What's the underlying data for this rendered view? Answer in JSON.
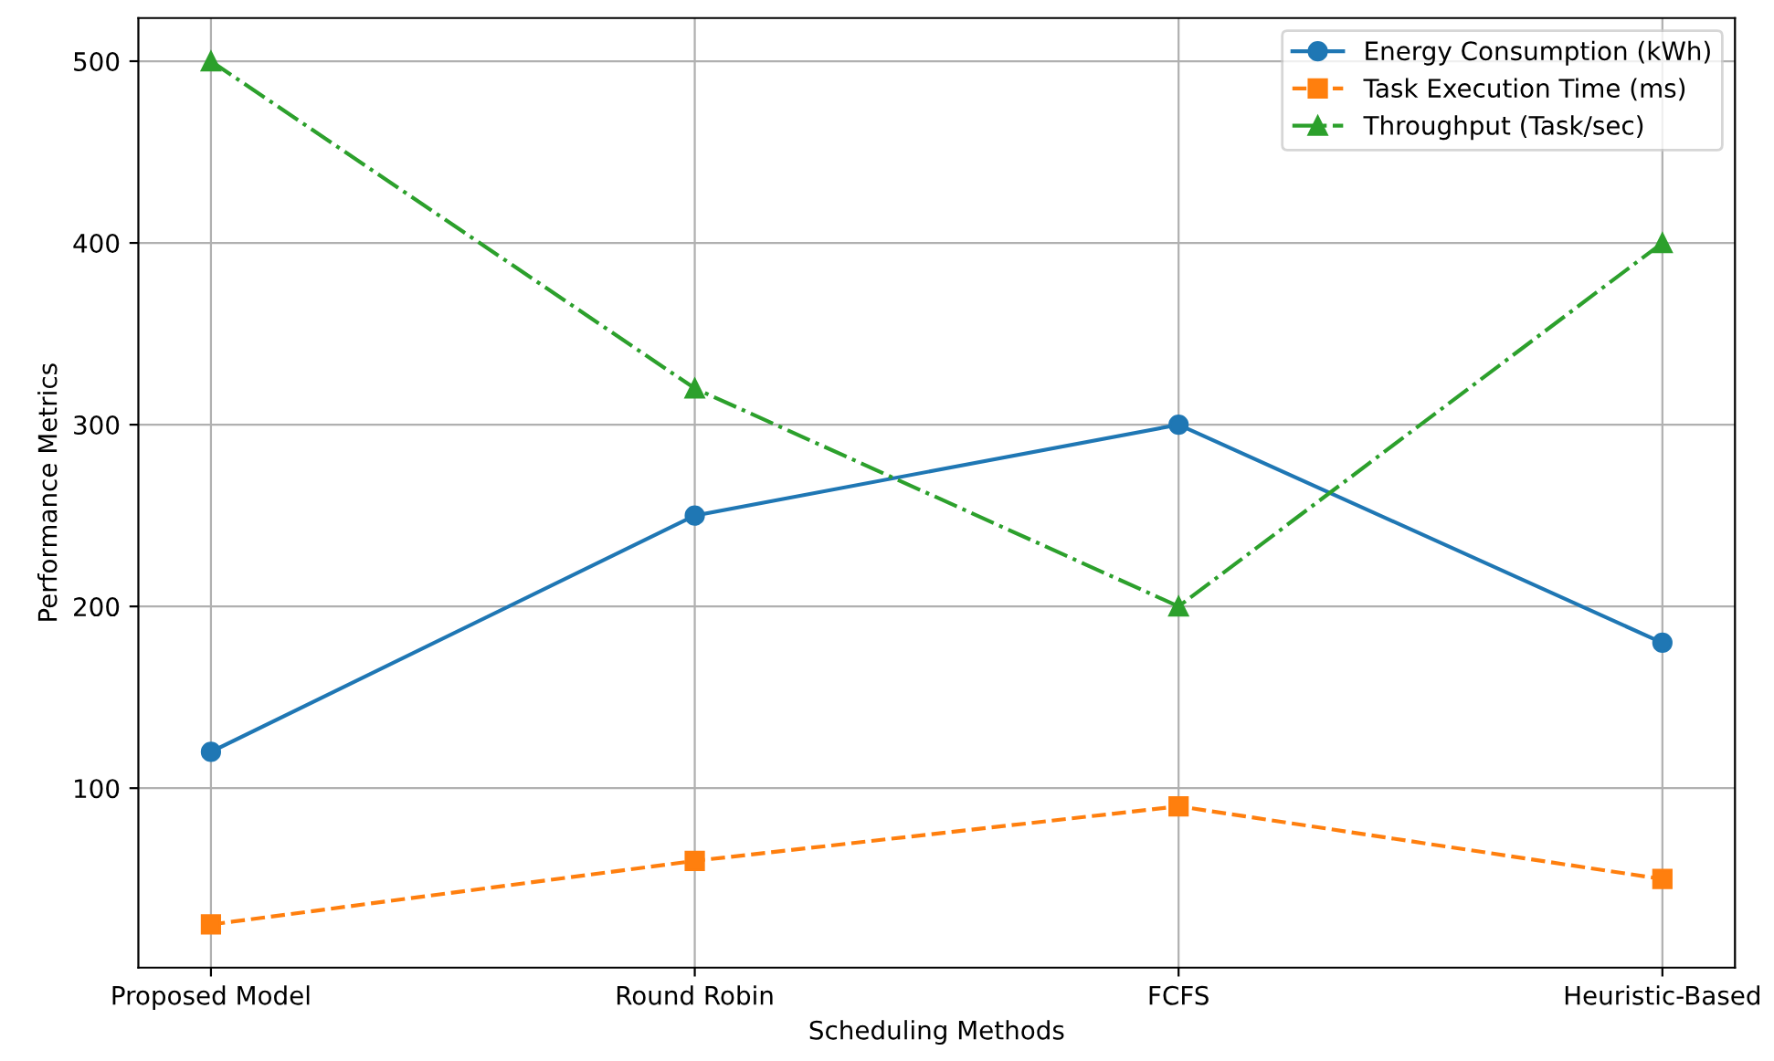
{
  "chart_data": {
    "type": "line",
    "xlabel": "Scheduling Methods",
    "ylabel": "Performance Metrics",
    "categories": [
      "Proposed Model",
      "Round Robin",
      "FCFS",
      "Heuristic-Based"
    ],
    "series": [
      {
        "name": "Energy Consumption (kWh)",
        "color": "#1f77b4",
        "marker": "circle",
        "line_style": "solid",
        "values": [
          120,
          250,
          300,
          180
        ]
      },
      {
        "name": "Task Execution Time (ms)",
        "color": "#ff7f0e",
        "marker": "square",
        "line_style": "dashed",
        "values": [
          25,
          60,
          90,
          50
        ]
      },
      {
        "name": "Throughput (Task/sec)",
        "color": "#2ca02c",
        "marker": "triangle",
        "line_style": "dashdot",
        "values": [
          500,
          320,
          200,
          400
        ]
      }
    ],
    "ylim": [
      1.25,
      523.75
    ],
    "yticks": [
      100,
      200,
      300,
      400,
      500
    ],
    "grid": true,
    "legend": "top right"
  }
}
